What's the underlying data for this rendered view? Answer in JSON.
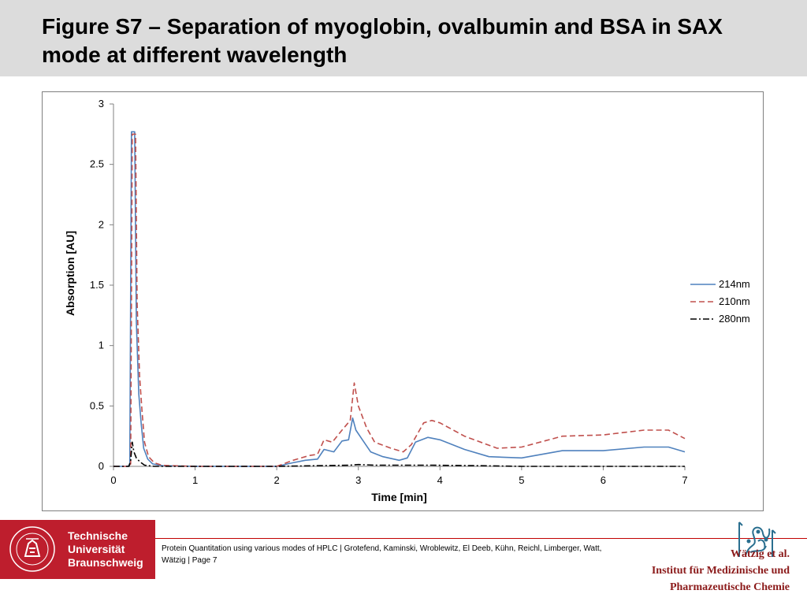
{
  "slide": {
    "title": "Figure S7 – Separation of myoglobin, ovalbumin and BSA in SAX mode at different wavelength"
  },
  "footer": {
    "university_lines": [
      "Technische",
      "Universität",
      "Braunschweig"
    ],
    "university_seal_text": "CAROLO-WILHELMINA · BRAUNSCHWEIG",
    "citation": "Protein Quantitation using various modes of HPLC | Grotefend, Kaminski, Wroblewitz, El Deeb, Kühn, Reichl, Limberger, Watt, Wätzig | Page 7",
    "institute_lines": [
      "Wätzig et al.",
      "Institut für Medizinische und",
      "Pharmazeutische Chemie"
    ],
    "colors": {
      "tu_red": "#be1e2d",
      "institute_text": "#8b1a1a",
      "rule": "#c00000"
    }
  },
  "chart_data": {
    "type": "line",
    "title": "",
    "xlabel": "Time [min]",
    "ylabel": "Absorption [AU]",
    "xlim": [
      0,
      7
    ],
    "ylim": [
      0,
      3
    ],
    "xticks": [
      "0",
      "1",
      "2",
      "3",
      "4",
      "5",
      "6",
      "7"
    ],
    "yticks": [
      "0",
      "0.5",
      "1",
      "1.5",
      "2",
      "2.5",
      "3"
    ],
    "grid": false,
    "legend_position": "right",
    "series": [
      {
        "name": "214nm",
        "color": "#4f81bd",
        "dash": "solid",
        "points": [
          [
            0,
            0
          ],
          [
            0.18,
            0
          ],
          [
            0.2,
            0.02
          ],
          [
            0.22,
            2.77
          ],
          [
            0.26,
            2.77
          ],
          [
            0.28,
            1.2
          ],
          [
            0.31,
            0.6
          ],
          [
            0.34,
            0.35
          ],
          [
            0.37,
            0.15
          ],
          [
            0.42,
            0.06
          ],
          [
            0.48,
            0.02
          ],
          [
            0.6,
            0.005
          ],
          [
            1,
            0
          ],
          [
            1.5,
            0
          ],
          [
            2,
            0
          ],
          [
            2.2,
            0.03
          ],
          [
            2.35,
            0.05
          ],
          [
            2.5,
            0.06
          ],
          [
            2.58,
            0.14
          ],
          [
            2.7,
            0.12
          ],
          [
            2.8,
            0.21
          ],
          [
            2.88,
            0.22
          ],
          [
            2.93,
            0.4
          ],
          [
            2.97,
            0.3
          ],
          [
            3.05,
            0.22
          ],
          [
            3.15,
            0.12
          ],
          [
            3.3,
            0.08
          ],
          [
            3.5,
            0.05
          ],
          [
            3.6,
            0.07
          ],
          [
            3.7,
            0.2
          ],
          [
            3.85,
            0.24
          ],
          [
            4,
            0.22
          ],
          [
            4.3,
            0.14
          ],
          [
            4.6,
            0.08
          ],
          [
            5,
            0.07
          ],
          [
            5.5,
            0.13
          ],
          [
            6,
            0.13
          ],
          [
            6.5,
            0.16
          ],
          [
            6.8,
            0.16
          ],
          [
            7,
            0.12
          ]
        ]
      },
      {
        "name": "210nm",
        "color": "#c0504d",
        "dash": "dashed",
        "points": [
          [
            0,
            0
          ],
          [
            0.19,
            0
          ],
          [
            0.21,
            0.02
          ],
          [
            0.23,
            2.75
          ],
          [
            0.27,
            2.75
          ],
          [
            0.29,
            1.35
          ],
          [
            0.32,
            0.75
          ],
          [
            0.35,
            0.45
          ],
          [
            0.38,
            0.2
          ],
          [
            0.43,
            0.08
          ],
          [
            0.5,
            0.03
          ],
          [
            0.6,
            0.008
          ],
          [
            1,
            0
          ],
          [
            1.5,
            0
          ],
          [
            2,
            0
          ],
          [
            2.2,
            0.05
          ],
          [
            2.4,
            0.09
          ],
          [
            2.5,
            0.1
          ],
          [
            2.58,
            0.22
          ],
          [
            2.68,
            0.2
          ],
          [
            2.8,
            0.3
          ],
          [
            2.9,
            0.38
          ],
          [
            2.95,
            0.69
          ],
          [
            3,
            0.5
          ],
          [
            3.1,
            0.32
          ],
          [
            3.2,
            0.2
          ],
          [
            3.4,
            0.15
          ],
          [
            3.55,
            0.12
          ],
          [
            3.65,
            0.18
          ],
          [
            3.8,
            0.36
          ],
          [
            3.9,
            0.38
          ],
          [
            4,
            0.36
          ],
          [
            4.3,
            0.25
          ],
          [
            4.7,
            0.15
          ],
          [
            5,
            0.16
          ],
          [
            5.5,
            0.25
          ],
          [
            6,
            0.26
          ],
          [
            6.5,
            0.3
          ],
          [
            6.8,
            0.3
          ],
          [
            7,
            0.23
          ]
        ]
      },
      {
        "name": "280nm",
        "color": "#000000",
        "dash": "dashdot",
        "points": [
          [
            0,
            0
          ],
          [
            0.19,
            0
          ],
          [
            0.21,
            0.05
          ],
          [
            0.23,
            0.2
          ],
          [
            0.25,
            0.12
          ],
          [
            0.28,
            0.07
          ],
          [
            0.32,
            0.04
          ],
          [
            0.38,
            0.01
          ],
          [
            0.5,
            0
          ],
          [
            1,
            0
          ],
          [
            2,
            0
          ],
          [
            2.9,
            0.01
          ],
          [
            3,
            0.015
          ],
          [
            3.2,
            0.01
          ],
          [
            3.9,
            0.01
          ],
          [
            4.5,
            0.005
          ],
          [
            5,
            0
          ],
          [
            6,
            0
          ],
          [
            7,
            0
          ]
        ]
      }
    ]
  }
}
